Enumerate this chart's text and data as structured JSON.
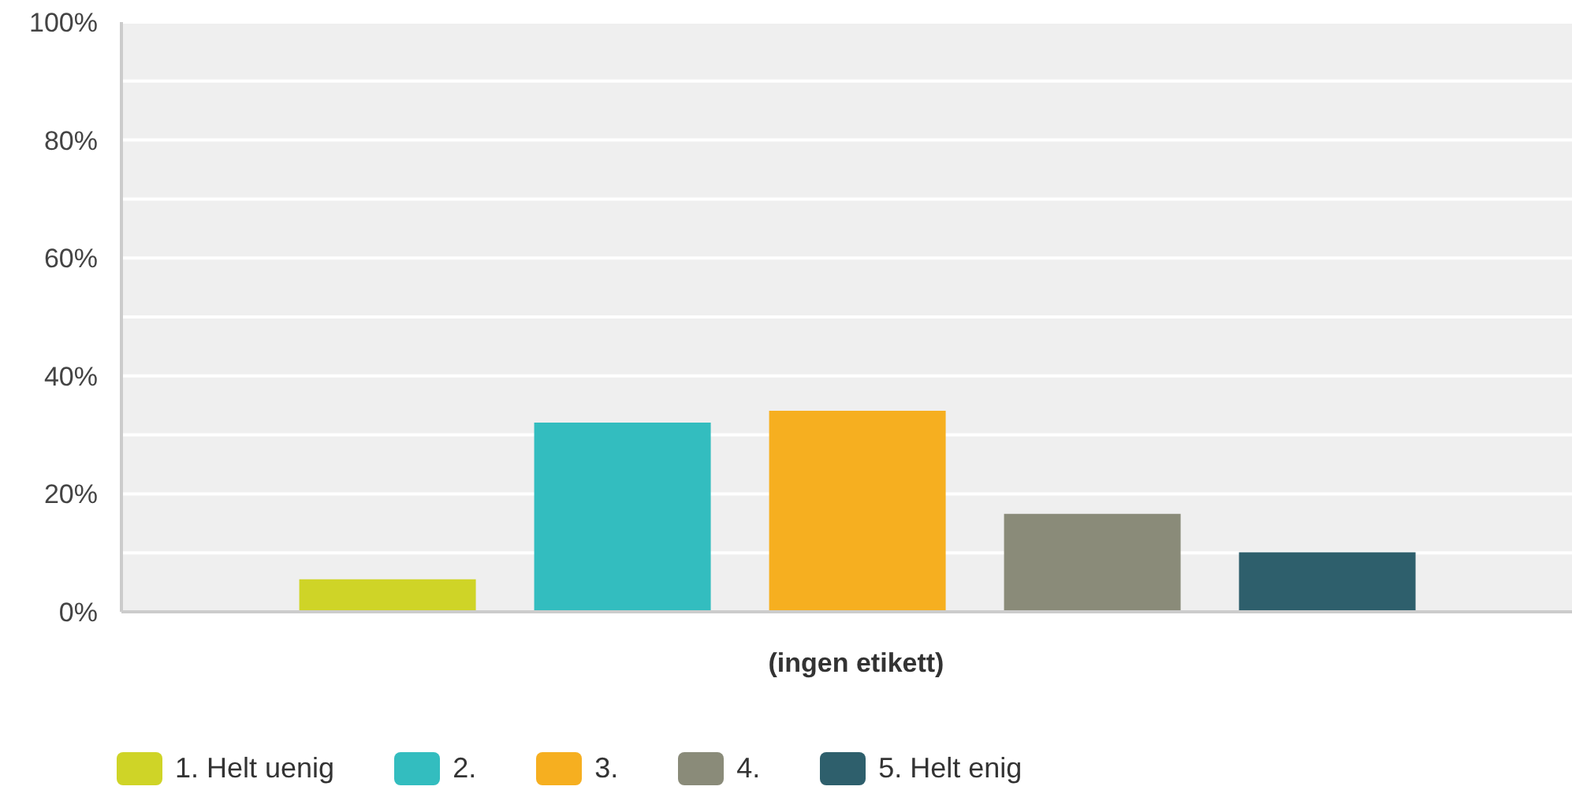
{
  "chart_data": {
    "type": "bar",
    "categories": [
      "(ingen etikett)"
    ],
    "series": [
      {
        "name": "1. Helt uenig",
        "color": "#cfd427",
        "values": [
          5.5
        ]
      },
      {
        "name": "2.",
        "color": "#33bdbf",
        "values": [
          32.1
        ]
      },
      {
        "name": "3.",
        "color": "#f6af20",
        "values": [
          34.1
        ]
      },
      {
        "name": "4.",
        "color": "#8a8b79",
        "values": [
          16.6
        ]
      },
      {
        "name": "5. Helt enig",
        "color": "#2e5f6c",
        "values": [
          10.1
        ]
      }
    ],
    "ylim": [
      0,
      100
    ],
    "yticks": [
      {
        "value": 0,
        "label": "0%"
      },
      {
        "value": 10,
        "label": null
      },
      {
        "value": 20,
        "label": "20%"
      },
      {
        "value": 30,
        "label": null
      },
      {
        "value": 40,
        "label": "40%"
      },
      {
        "value": 50,
        "label": null
      },
      {
        "value": 60,
        "label": "60%"
      },
      {
        "value": 70,
        "label": null
      },
      {
        "value": 80,
        "label": "80%"
      },
      {
        "value": 90,
        "label": null
      },
      {
        "value": 100,
        "label": "100%"
      }
    ],
    "grid": "y",
    "legend": "bottom"
  }
}
